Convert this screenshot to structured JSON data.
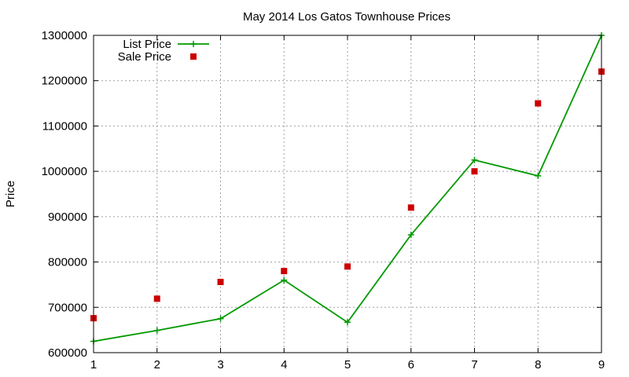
{
  "chart_data": {
    "type": "line",
    "title": "May 2014 Los Gatos Townhouse Prices",
    "xlabel": "",
    "ylabel": "Price",
    "xlim": [
      1,
      9
    ],
    "ylim": [
      600000,
      1300000
    ],
    "x_ticks": [
      1,
      2,
      3,
      4,
      5,
      6,
      7,
      8,
      9
    ],
    "y_ticks": [
      600000,
      700000,
      800000,
      900000,
      1000000,
      1100000,
      1200000,
      1300000
    ],
    "grid": true,
    "legend_position": "top-left",
    "x": [
      1,
      2,
      3,
      4,
      5,
      6,
      7,
      8,
      9
    ],
    "series": [
      {
        "name": "List Price",
        "style": "linespoints",
        "marker": "plus",
        "color": "#009900",
        "values": [
          625000,
          649000,
          675000,
          760000,
          667000,
          860000,
          1025000,
          990000,
          1300000
        ]
      },
      {
        "name": "Sale Price",
        "style": "points",
        "marker": "square",
        "color": "#cc0000",
        "values": [
          676000,
          719000,
          756000,
          780000,
          790000,
          920000,
          1000000,
          1150000,
          1220000
        ]
      }
    ]
  }
}
